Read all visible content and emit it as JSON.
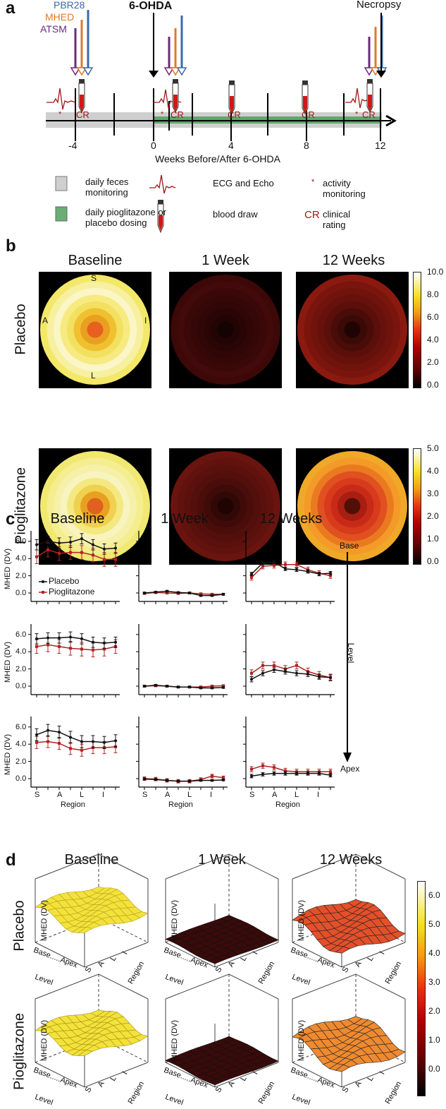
{
  "panel_a": {
    "label": "a",
    "tracers": [
      "PBR28",
      "MHED",
      "ATSM"
    ],
    "tracer_colors": [
      "#3b6aa8",
      "#e0782a",
      "#6a2a7a"
    ],
    "event_6ohda": "6-OHDA",
    "event_necropsy": "Necropsy",
    "ticks": [
      "-4",
      "0",
      "4",
      "8",
      "12"
    ],
    "axis_title": "Weeks Before/After 6-OHDA",
    "cr": "CR",
    "star": "*",
    "legend": {
      "feces": "daily feces monitoring",
      "dosing": "daily pioglitazone or placebo dosing",
      "ecg": "ECG and Echo",
      "blood": "blood draw",
      "activity": "activity monitoring",
      "cr_label": "clinical rating"
    }
  },
  "panel_b": {
    "label": "b",
    "columns": [
      "Baseline",
      "1 Week",
      "12 Weeks"
    ],
    "rows": [
      "Placebo",
      "Pioglitazone"
    ],
    "orient": {
      "S": "S",
      "A": "A",
      "I": "I",
      "L": "L"
    },
    "colorbar1": [
      "10.0",
      "8.0",
      "6.0",
      "4.0",
      "2.0",
      "0.0"
    ],
    "colorbar2": [
      "5.0",
      "4.0",
      "3.0",
      "2.0",
      "1.0",
      "0.0"
    ]
  },
  "panel_c": {
    "label": "c",
    "columns": [
      "Baseline",
      "1 Week",
      "12 Weeks"
    ],
    "ylabel": "MHED (DV)",
    "xlabel": "Region",
    "xticklabels": [
      "S",
      "A",
      "L",
      "I"
    ],
    "yticklabels": [
      "6.0",
      "4.0",
      "2.0",
      "0.0"
    ],
    "legend": [
      "Placebo",
      "Pioglitazone"
    ],
    "level_top": "Base",
    "level_mid": "Level",
    "level_bottom": "Apex"
  },
  "panel_d": {
    "label": "d",
    "columns": [
      "Baseline",
      "1 Week",
      "12 Weeks"
    ],
    "rows": [
      "Placebo",
      "Pioglitazone"
    ],
    "zlabel": "MHED (DV)",
    "level_axis": "Base.....Apex",
    "level_label": "Level",
    "region_ticks": [
      "S",
      "A",
      "L",
      "I"
    ],
    "region_label": "Region",
    "colorbar": [
      "6.0",
      "5.0",
      "4.0",
      "3.0",
      "2.0",
      "1.0",
      "0.0"
    ]
  },
  "chart_data": [
    {
      "type": "line",
      "panel": "c",
      "row": "Base",
      "column": "Baseline",
      "x": [
        1,
        2,
        3,
        4,
        5,
        6,
        7,
        8
      ],
      "series": [
        {
          "name": "Placebo",
          "color": "#111111",
          "values": [
            5.6,
            6.0,
            5.8,
            5.9,
            6.3,
            5.6,
            5.1,
            5.2
          ],
          "err": 0.6
        },
        {
          "name": "Pioglitazone",
          "color": "#b22222",
          "values": [
            4.2,
            5.0,
            4.6,
            4.7,
            4.7,
            4.4,
            3.9,
            3.9
          ],
          "err": 0.8
        }
      ],
      "ylim": [
        -0.8,
        7.2
      ]
    },
    {
      "type": "line",
      "panel": "c",
      "row": "Base",
      "column": "1 Week",
      "x": [
        1,
        2,
        3,
        4,
        5,
        6,
        7,
        8
      ],
      "series": [
        {
          "name": "Placebo",
          "color": "#111111",
          "values": [
            0,
            0.1,
            0.2,
            0.05,
            0,
            -0.3,
            -0.3,
            -0.15
          ],
          "err": 0.1
        },
        {
          "name": "Pioglitazone",
          "color": "#b22222",
          "values": [
            -0.05,
            0.05,
            0,
            -0.05,
            0,
            -0.1,
            -0.15,
            -0.15
          ],
          "err": 0.1
        }
      ],
      "ylim": [
        -0.8,
        7.2
      ]
    },
    {
      "type": "line",
      "panel": "c",
      "row": "Base",
      "column": "12 Weeks",
      "x": [
        1,
        2,
        3,
        4,
        5,
        6,
        7,
        8
      ],
      "series": [
        {
          "name": "Placebo",
          "color": "#111111",
          "values": [
            2.2,
            3.5,
            3.6,
            2.8,
            2.7,
            2.5,
            2.2,
            2.3
          ],
          "err": 0.2
        },
        {
          "name": "Pioglitazone",
          "color": "#b22222",
          "values": [
            1.8,
            3.1,
            3.2,
            3.3,
            3.3,
            2.7,
            2.3,
            2.0
          ],
          "err": 0.3
        }
      ],
      "ylim": [
        -0.8,
        7.2
      ]
    },
    {
      "type": "line",
      "panel": "c",
      "row": "Mid",
      "column": "Baseline",
      "x": [
        1,
        2,
        3,
        4,
        5,
        6,
        7,
        8
      ],
      "series": [
        {
          "name": "Placebo",
          "color": "#111111",
          "values": [
            5.5,
            5.6,
            5.6,
            5.7,
            5.5,
            5.1,
            5.0,
            5.1
          ],
          "err": 0.6
        },
        {
          "name": "Pioglitazone",
          "color": "#b22222",
          "values": [
            4.6,
            4.8,
            4.6,
            4.4,
            4.3,
            4.2,
            4.3,
            4.6
          ],
          "err": 0.8
        }
      ],
      "ylim": [
        -0.8,
        7.2
      ]
    },
    {
      "type": "line",
      "panel": "c",
      "row": "Mid",
      "column": "1 Week",
      "x": [
        1,
        2,
        3,
        4,
        5,
        6,
        7,
        8
      ],
      "series": [
        {
          "name": "Placebo",
          "color": "#111111",
          "values": [
            0,
            0.1,
            0,
            -0.1,
            -0.1,
            -0.2,
            -0.2,
            -0.15
          ],
          "err": 0.1
        },
        {
          "name": "Pioglitazone",
          "color": "#b22222",
          "values": [
            0,
            0.05,
            0,
            -0.1,
            -0.1,
            -0.1,
            0,
            0.05
          ],
          "err": 0.1
        }
      ],
      "ylim": [
        -0.8,
        7.2
      ]
    },
    {
      "type": "line",
      "panel": "c",
      "row": "Mid",
      "column": "12 Weeks",
      "x": [
        1,
        2,
        3,
        4,
        5,
        6,
        7,
        8
      ],
      "series": [
        {
          "name": "Placebo",
          "color": "#111111",
          "values": [
            0.8,
            1.5,
            1.9,
            1.7,
            1.5,
            1.4,
            1.1,
            1.0
          ],
          "err": 0.3
        },
        {
          "name": "Pioglitazone",
          "color": "#b22222",
          "values": [
            1.5,
            2.4,
            2.4,
            2.0,
            2.4,
            1.7,
            1.3,
            1.0
          ],
          "err": 0.4
        }
      ],
      "ylim": [
        -0.8,
        7.2
      ]
    },
    {
      "type": "line",
      "panel": "c",
      "row": "Apex",
      "column": "Baseline",
      "x": [
        1,
        2,
        3,
        4,
        5,
        6,
        7,
        8
      ],
      "series": [
        {
          "name": "Placebo",
          "color": "#111111",
          "values": [
            5.1,
            5.6,
            5.4,
            4.8,
            4.3,
            4.3,
            4.2,
            4.4
          ],
          "err": 0.7
        },
        {
          "name": "Pioglitazone",
          "color": "#b22222",
          "values": [
            4.2,
            4.3,
            4.1,
            3.5,
            3.3,
            3.6,
            3.6,
            3.7
          ],
          "err": 0.7
        }
      ],
      "ylim": [
        -0.8,
        7.2
      ]
    },
    {
      "type": "line",
      "panel": "c",
      "row": "Apex",
      "column": "1 Week",
      "x": [
        1,
        2,
        3,
        4,
        5,
        6,
        7,
        8
      ],
      "series": [
        {
          "name": "Placebo",
          "color": "#111111",
          "values": [
            -0.05,
            -0.1,
            -0.2,
            -0.3,
            -0.3,
            -0.2,
            -0.2,
            -0.15
          ],
          "err": 0.1
        },
        {
          "name": "Pioglitazone",
          "color": "#b22222",
          "values": [
            0,
            -0.05,
            -0.2,
            -0.3,
            -0.3,
            -0.1,
            0.3,
            0.1
          ],
          "err": 0.2
        }
      ],
      "ylim": [
        -0.8,
        7.2
      ]
    },
    {
      "type": "line",
      "panel": "c",
      "row": "Apex",
      "column": "12 Weeks",
      "x": [
        1,
        2,
        3,
        4,
        5,
        6,
        7,
        8
      ],
      "series": [
        {
          "name": "Placebo",
          "color": "#111111",
          "values": [
            0.3,
            0.5,
            0.6,
            0.6,
            0.6,
            0.6,
            0.6,
            0.4
          ],
          "err": 0.2
        },
        {
          "name": "Pioglitazone",
          "color": "#b22222",
          "values": [
            1.1,
            1.5,
            1.3,
            0.9,
            0.8,
            0.8,
            0.8,
            0.8
          ],
          "err": 0.3
        }
      ],
      "ylim": [
        -0.8,
        7.2
      ]
    }
  ]
}
